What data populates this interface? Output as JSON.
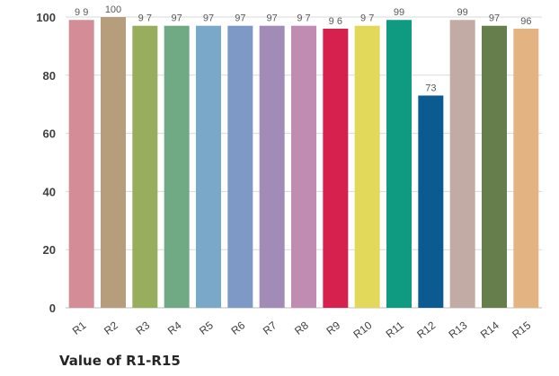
{
  "caption": "Value of R1-R15",
  "chart_data": {
    "type": "bar",
    "categories": [
      "R1",
      "R2",
      "R3",
      "R4",
      "R5",
      "R6",
      "R7",
      "R8",
      "R9",
      "R10",
      "R11",
      "R12",
      "R13",
      "R14",
      "R15"
    ],
    "values": [
      99,
      100,
      97,
      97,
      97,
      97,
      97,
      97,
      96,
      97,
      99,
      73,
      99,
      97,
      96
    ],
    "data_labels": [
      "9 9",
      "100",
      "9 7",
      "97",
      "97",
      "97",
      "97",
      "9 7",
      "9 6",
      "9 7",
      "99",
      "73",
      "99",
      "97",
      "96"
    ],
    "colors": [
      "#d48d96",
      "#b69d7c",
      "#97ae5d",
      "#6faa85",
      "#79a8c8",
      "#7f99c7",
      "#a28bb7",
      "#c08cb2",
      "#d6214e",
      "#e2d95b",
      "#0e9b82",
      "#0b5a92",
      "#c2aba5",
      "#667d4c",
      "#e3b482"
    ],
    "ylim": [
      0,
      100
    ],
    "yticks": [
      "0",
      "20",
      "40",
      "60",
      "80",
      "100"
    ],
    "grid": true,
    "title": "",
    "xlabel": "",
    "ylabel": ""
  }
}
